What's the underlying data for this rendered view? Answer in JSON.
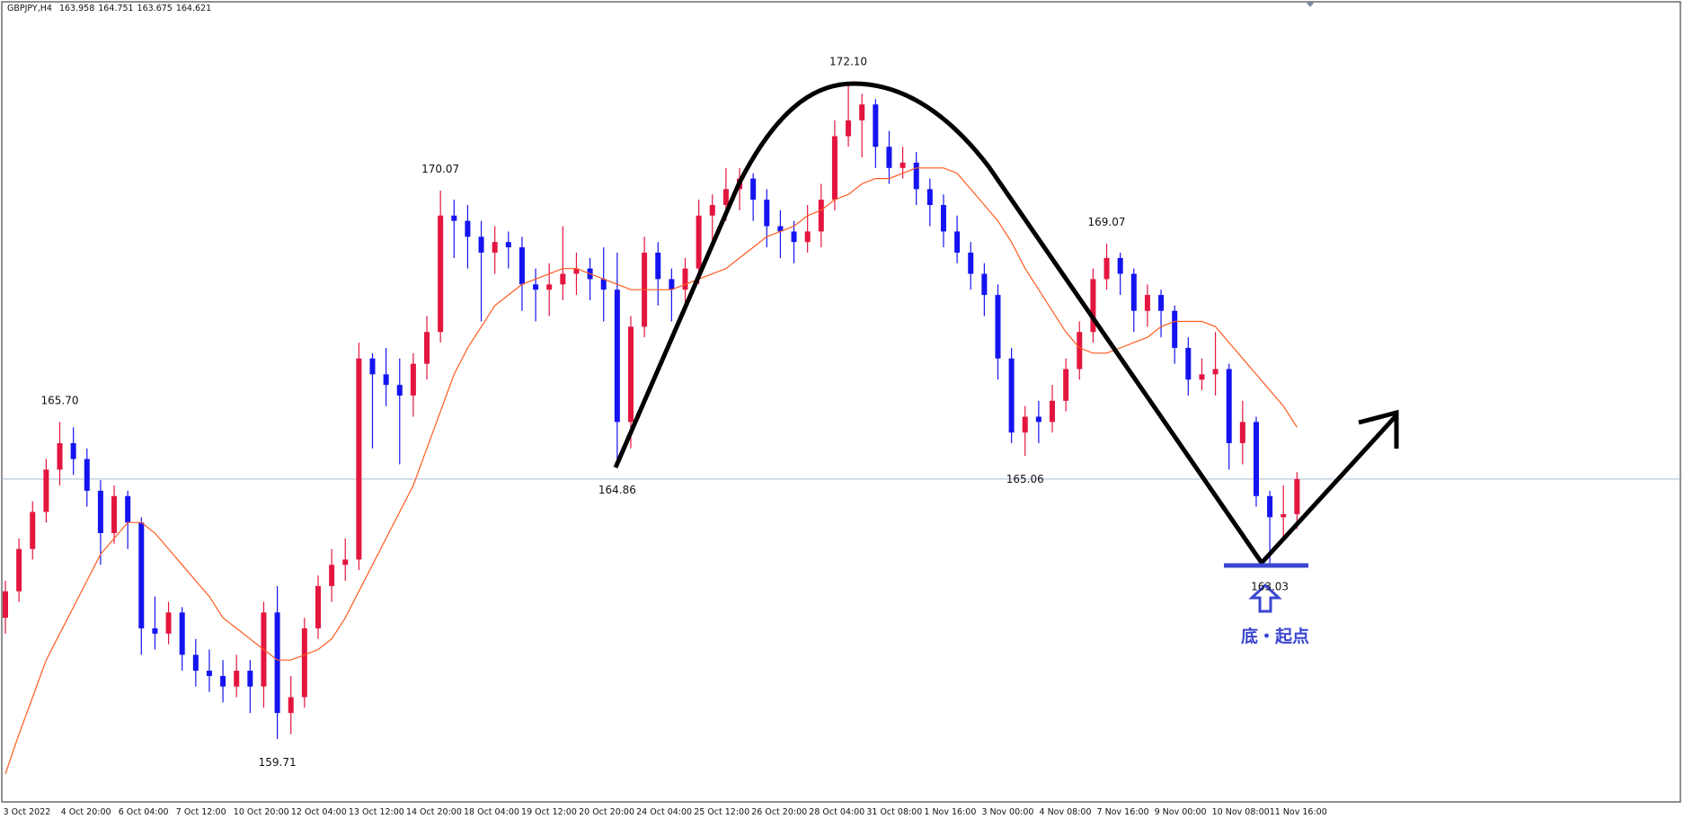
{
  "chart_data": {
    "type": "candlestick",
    "symbol": "GBPJPY,H4",
    "annotation": "底・起点",
    "up_color": "#e3163f",
    "down_color": "#1414f0",
    "ma_color": "#ff5a1f",
    "bid_line_color": "#a9bbd3",
    "ylim": [
      158.52,
      173.64
    ],
    "xtick_labels": [
      "3 Oct 2022",
      "4 Oct 20:00",
      "6 Oct 04:00",
      "7 Oct 12:00",
      "10 Oct 20:00",
      "12 Oct 04:00",
      "13 Oct 12:00",
      "14 Oct 20:00",
      "18 Oct 04:00",
      "19 Oct 12:00",
      "20 Oct 20:00",
      "24 Oct 04:00",
      "25 Oct 12:00",
      "26 Oct 20:00",
      "28 Oct 04:00",
      "31 Oct 08:00",
      "1 Nov 16:00",
      "3 Nov 00:00",
      "4 Nov 08:00",
      "7 Nov 16:00",
      "9 Nov 00:00",
      "10 Nov 08:00",
      "11 Nov 16:00"
    ],
    "ohlc": [
      [
        162.0,
        162.7,
        161.7,
        162.5
      ],
      [
        162.5,
        163.5,
        162.3,
        163.3
      ],
      [
        163.3,
        164.2,
        163.1,
        164.0
      ],
      [
        164.0,
        165.0,
        163.8,
        164.8
      ],
      [
        164.8,
        165.7,
        164.5,
        165.3
      ],
      [
        165.3,
        165.6,
        164.7,
        165.0
      ],
      [
        165.0,
        165.2,
        164.1,
        164.4
      ],
      [
        164.4,
        164.6,
        163.0,
        163.6
      ],
      [
        163.6,
        164.5,
        163.4,
        164.3
      ],
      [
        164.3,
        164.4,
        163.3,
        163.8
      ],
      [
        163.8,
        163.9,
        161.3,
        161.8
      ],
      [
        161.8,
        162.4,
        161.4,
        161.7
      ],
      [
        161.7,
        162.3,
        161.5,
        162.1
      ],
      [
        162.1,
        162.2,
        161.0,
        161.3
      ],
      [
        161.3,
        161.6,
        160.7,
        161.0
      ],
      [
        161.0,
        161.4,
        160.6,
        160.9
      ],
      [
        160.9,
        161.2,
        160.4,
        160.7
      ],
      [
        160.7,
        161.3,
        160.5,
        161.0
      ],
      [
        161.0,
        161.2,
        160.2,
        160.7
      ],
      [
        160.7,
        162.3,
        160.3,
        162.1
      ],
      [
        162.1,
        162.6,
        159.71,
        160.2
      ],
      [
        160.2,
        160.9,
        159.8,
        160.5
      ],
      [
        160.5,
        162.0,
        160.3,
        161.8
      ],
      [
        161.8,
        162.8,
        161.6,
        162.6
      ],
      [
        162.6,
        163.3,
        162.3,
        163.0
      ],
      [
        163.0,
        163.5,
        162.7,
        163.1
      ],
      [
        163.1,
        167.2,
        162.9,
        166.9
      ],
      [
        166.9,
        167.0,
        165.2,
        166.6
      ],
      [
        166.6,
        167.1,
        166.0,
        166.4
      ],
      [
        166.4,
        166.9,
        164.9,
        166.2
      ],
      [
        166.2,
        167.0,
        165.8,
        166.8
      ],
      [
        166.8,
        167.7,
        166.5,
        167.4
      ],
      [
        167.4,
        170.07,
        167.2,
        169.6
      ],
      [
        169.6,
        169.9,
        168.8,
        169.5
      ],
      [
        169.5,
        169.8,
        168.6,
        169.2
      ],
      [
        169.2,
        169.5,
        167.6,
        168.9
      ],
      [
        168.9,
        169.4,
        168.5,
        169.1
      ],
      [
        169.1,
        169.3,
        168.6,
        169.0
      ],
      [
        169.0,
        169.2,
        167.8,
        168.3
      ],
      [
        168.3,
        168.6,
        167.6,
        168.2
      ],
      [
        168.2,
        168.7,
        167.7,
        168.3
      ],
      [
        168.3,
        169.4,
        168.0,
        168.5
      ],
      [
        168.5,
        168.9,
        168.1,
        168.6
      ],
      [
        168.6,
        168.8,
        168.0,
        168.4
      ],
      [
        168.4,
        169.0,
        167.6,
        168.2
      ],
      [
        168.2,
        168.9,
        164.86,
        165.7
      ],
      [
        165.7,
        167.7,
        165.2,
        167.5
      ],
      [
        167.5,
        169.2,
        167.3,
        168.9
      ],
      [
        168.9,
        169.1,
        167.9,
        168.4
      ],
      [
        168.4,
        168.6,
        167.6,
        168.2
      ],
      [
        168.2,
        168.8,
        167.9,
        168.6
      ],
      [
        168.6,
        169.9,
        168.3,
        169.6
      ],
      [
        169.6,
        170.0,
        169.1,
        169.8
      ],
      [
        169.8,
        170.5,
        169.5,
        170.1
      ],
      [
        170.1,
        170.5,
        169.7,
        170.3
      ],
      [
        170.3,
        170.4,
        169.5,
        169.9
      ],
      [
        169.9,
        170.1,
        169.0,
        169.4
      ],
      [
        169.4,
        169.7,
        168.8,
        169.3
      ],
      [
        169.3,
        169.5,
        168.7,
        169.1
      ],
      [
        169.1,
        169.8,
        168.9,
        169.3
      ],
      [
        169.3,
        170.2,
        169.0,
        169.9
      ],
      [
        169.9,
        171.4,
        169.7,
        171.1
      ],
      [
        171.1,
        172.1,
        170.9,
        171.4
      ],
      [
        171.4,
        171.9,
        170.7,
        171.7
      ],
      [
        171.7,
        171.8,
        170.5,
        170.9
      ],
      [
        170.9,
        171.2,
        170.2,
        170.5
      ],
      [
        170.5,
        170.9,
        170.3,
        170.6
      ],
      [
        170.6,
        170.8,
        169.8,
        170.1
      ],
      [
        170.1,
        170.3,
        169.4,
        169.8
      ],
      [
        169.8,
        170.0,
        169.0,
        169.3
      ],
      [
        169.3,
        169.6,
        168.7,
        168.9
      ],
      [
        168.9,
        169.1,
        168.2,
        168.5
      ],
      [
        168.5,
        168.7,
        167.7,
        168.1
      ],
      [
        168.1,
        168.3,
        166.5,
        166.9
      ],
      [
        166.9,
        167.1,
        165.3,
        165.5
      ],
      [
        165.5,
        166.0,
        165.06,
        165.8
      ],
      [
        165.8,
        166.1,
        165.3,
        165.7
      ],
      [
        165.7,
        166.4,
        165.5,
        166.1
      ],
      [
        166.1,
        166.9,
        165.9,
        166.7
      ],
      [
        166.7,
        167.6,
        166.5,
        167.4
      ],
      [
        167.4,
        168.6,
        167.2,
        168.4
      ],
      [
        168.4,
        169.07,
        168.2,
        168.8
      ],
      [
        168.8,
        168.9,
        168.1,
        168.5
      ],
      [
        168.5,
        168.6,
        167.4,
        167.8
      ],
      [
        167.8,
        168.3,
        167.5,
        168.1
      ],
      [
        168.1,
        168.2,
        167.3,
        167.8
      ],
      [
        167.8,
        167.9,
        166.8,
        167.1
      ],
      [
        167.1,
        167.3,
        166.2,
        166.5
      ],
      [
        166.5,
        166.9,
        166.3,
        166.6
      ],
      [
        166.6,
        167.4,
        166.2,
        166.7
      ],
      [
        166.7,
        166.8,
        164.8,
        165.3
      ],
      [
        165.3,
        166.1,
        164.9,
        165.7
      ],
      [
        165.7,
        165.8,
        164.1,
        164.3
      ],
      [
        164.3,
        164.4,
        163.03,
        163.9
      ],
      [
        163.9,
        164.5,
        163.5,
        163.958
      ],
      [
        163.958,
        164.751,
        163.675,
        164.621
      ]
    ],
    "ma": [
      159.05,
      159.8,
      160.5,
      161.2,
      161.7,
      162.2,
      162.7,
      163.2,
      163.5,
      163.8,
      163.8,
      163.6,
      163.3,
      163.0,
      162.7,
      162.4,
      162.0,
      161.8,
      161.6,
      161.4,
      161.2,
      161.2,
      161.3,
      161.4,
      161.6,
      162.0,
      162.5,
      163.0,
      163.5,
      164.0,
      164.5,
      165.2,
      165.9,
      166.6,
      167.1,
      167.5,
      167.9,
      168.1,
      168.3,
      168.4,
      168.5,
      168.6,
      168.6,
      168.5,
      168.4,
      168.3,
      168.2,
      168.2,
      168.2,
      168.2,
      168.3,
      168.4,
      168.5,
      168.6,
      168.8,
      169.0,
      169.2,
      169.3,
      169.4,
      169.6,
      169.7,
      169.9,
      170.0,
      170.2,
      170.3,
      170.3,
      170.4,
      170.5,
      170.5,
      170.5,
      170.4,
      170.1,
      169.8,
      169.5,
      169.1,
      168.6,
      168.2,
      167.8,
      167.4,
      167.1,
      167.0,
      167.0,
      167.1,
      167.2,
      167.3,
      167.5,
      167.6,
      167.6,
      167.6,
      167.5,
      167.2,
      166.9,
      166.6,
      166.3,
      166.0,
      165.6
    ],
    "extreme_labels": [
      {
        "index": 4,
        "at": "high",
        "label": "165.70"
      },
      {
        "index": 20,
        "at": "low",
        "label": "159.71"
      },
      {
        "index": 32,
        "at": "high",
        "label": "170.07"
      },
      {
        "index": 45,
        "at": "low",
        "label": "164.86"
      },
      {
        "index": 62,
        "at": "high",
        "label": "172.10"
      },
      {
        "index": 75,
        "at": "low",
        "label": "165.06"
      },
      {
        "index": 81,
        "at": "high",
        "label": "169.07"
      },
      {
        "index": 93,
        "at": "low",
        "label": "163.03"
      }
    ]
  }
}
